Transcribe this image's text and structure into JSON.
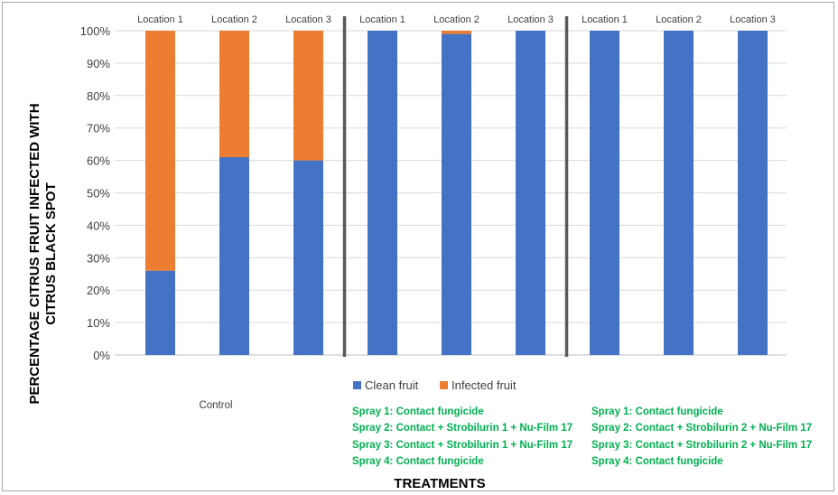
{
  "chart_data": {
    "type": "bar",
    "stacked": true,
    "title": "",
    "ylabel_lines": [
      "PERCENTAGE CITRUS FRUIT INFECTED WITH",
      "CITRUS BLACK SPOT"
    ],
    "xlabel": "TREATMENTS",
    "ylim": [
      0,
      100
    ],
    "yticks": [
      "0%",
      "10%",
      "20%",
      "30%",
      "40%",
      "50%",
      "60%",
      "70%",
      "80%",
      "90%",
      "100%"
    ],
    "yticks_values": [
      0,
      10,
      20,
      30,
      40,
      50,
      60,
      70,
      80,
      90,
      100
    ],
    "grid": true,
    "legend_position": "bottom-center",
    "categories": [
      "Location 1",
      "Location 2",
      "Location 3",
      "Location 1",
      "Location 2",
      "Location 3",
      "Location 1",
      "Location 2",
      "Location 3"
    ],
    "series": [
      {
        "name": "Clean fruit",
        "color": "#4472c4",
        "values": [
          26,
          61,
          60,
          100,
          99,
          100,
          100,
          100,
          100
        ]
      },
      {
        "name": "Infected fruit",
        "color": "#ed7d31",
        "values": [
          74,
          39,
          40,
          0,
          1,
          0,
          0,
          0,
          0
        ]
      }
    ],
    "groups": [
      {
        "label_lines": [
          "Control"
        ],
        "category_count": 3
      },
      {
        "label_lines": [
          "Spray 1: Contact fungicide",
          "Spray 2: Contact + Strobilurin 1 + Nu-Film 17",
          "Spray 3: Contact + Strobilurin 1 + Nu-Film 17",
          "Spray 4: Contact fungicide"
        ],
        "category_count": 3
      },
      {
        "label_lines": [
          "Spray 1: Contact fungicide",
          "Spray 2: Contact + Strobilurin 2 + Nu-Film 17",
          "Spray 3: Contact + Strobilurin 2 + Nu-Film 17",
          "Spray 4: Contact fungicide"
        ],
        "category_count": 3
      }
    ]
  }
}
